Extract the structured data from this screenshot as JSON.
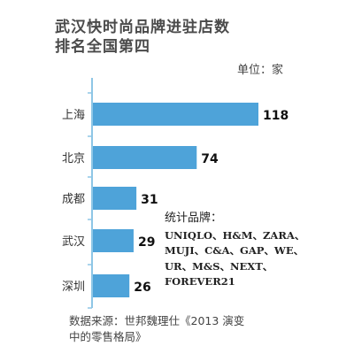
{
  "title_line1": "武汉快时尚品牌进驻店数",
  "title_line2": "排名全国第四",
  "unit": "单位：家",
  "note": {
    "heading": "统计品牌：",
    "lines": [
      "UNIQLO、H&M、ZARA、",
      "MUJI、C&A、GAP、WE、",
      "UR、M&S、NEXT、",
      "FOREVER21"
    ]
  },
  "source_line1": "数据来源：世邦魏理仕《2013 演变",
  "source_line2": "中的零售格局》",
  "colors": {
    "bar": "#4ea3d9",
    "axis": "#8ec6e6"
  },
  "chart_data": {
    "type": "bar",
    "orientation": "horizontal",
    "categories": [
      "上海",
      "北京",
      "成都",
      "武汉",
      "深圳"
    ],
    "values": [
      118,
      74,
      31,
      29,
      26
    ],
    "title": "武汉快时尚品牌进驻店数排名全国第四",
    "xlabel": "",
    "ylabel": "",
    "unit": "单位：家",
    "xlim": [
      0,
      118
    ],
    "grid": false
  }
}
